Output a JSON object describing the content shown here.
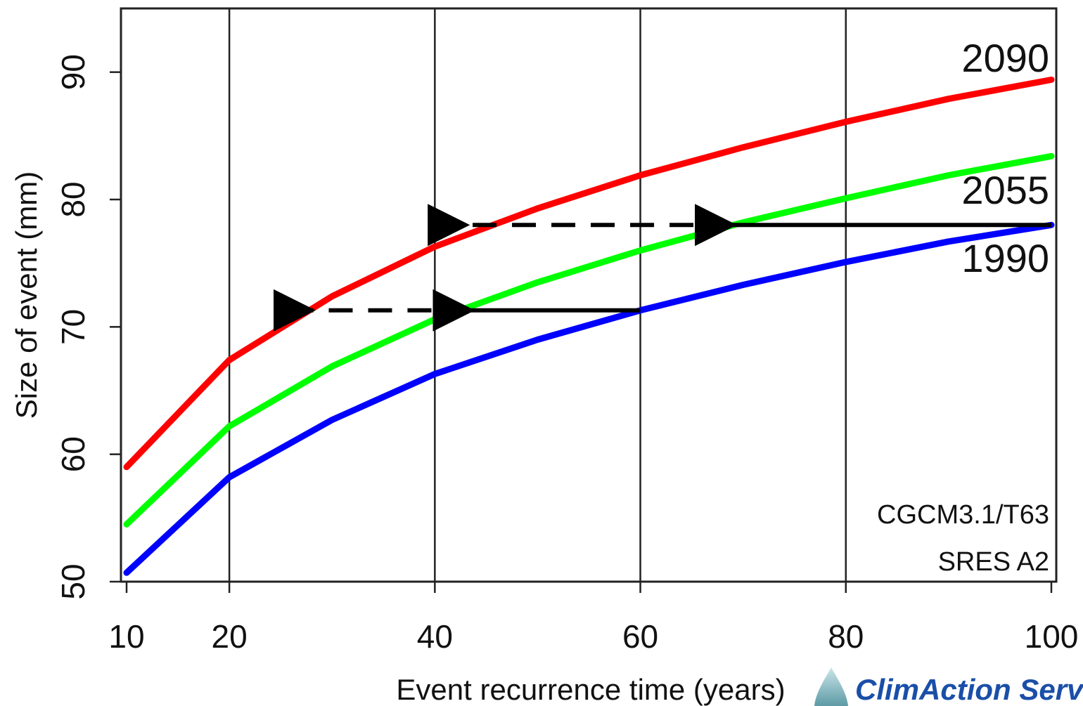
{
  "chart_data": {
    "type": "line",
    "title": "",
    "xlabel": "Event recurrence time (years)",
    "ylabel": "Size of event (mm)",
    "xlim": [
      10,
      100
    ],
    "ylim": [
      50,
      95
    ],
    "x_ticks": [
      10,
      20,
      40,
      60,
      80,
      100
    ],
    "x_tick_labels": [
      "10",
      "20",
      "40",
      "60",
      "80",
      "100"
    ],
    "y_ticks": [
      50,
      60,
      70,
      80,
      90
    ],
    "y_tick_labels": [
      "50",
      "60",
      "70",
      "80",
      "90"
    ],
    "grid": "vertical lines at x ticks",
    "x": [
      10,
      20,
      30,
      40,
      50,
      60,
      70,
      80,
      90,
      100
    ],
    "series": [
      {
        "name": "2090",
        "color": "#ff0000",
        "values": [
          59.0,
          67.4,
          72.4,
          76.3,
          79.3,
          81.9,
          84.1,
          86.1,
          87.9,
          89.4
        ]
      },
      {
        "name": "2055",
        "color": "#00ff00",
        "values": [
          54.5,
          62.2,
          66.9,
          70.6,
          73.5,
          76.0,
          78.2,
          80.1,
          81.9,
          83.4
        ]
      },
      {
        "name": "1990",
        "color": "#0000ff",
        "values": [
          50.7,
          58.2,
          62.7,
          66.3,
          69.0,
          71.3,
          73.3,
          75.1,
          76.7,
          78.0
        ]
      }
    ],
    "annotations": [
      {
        "kind": "arrow",
        "style": "solid",
        "from": [
          100,
          78
        ],
        "to": [
          69,
          78
        ]
      },
      {
        "kind": "arrow",
        "style": "dashed",
        "from": [
          69,
          78
        ],
        "to": [
          43,
          78
        ]
      },
      {
        "kind": "arrow",
        "style": "solid",
        "from": [
          60,
          71.3
        ],
        "to": [
          43.5,
          71.3
        ]
      },
      {
        "kind": "arrow",
        "style": "dashed",
        "from": [
          43.5,
          71.3
        ],
        "to": [
          28,
          71.3
        ]
      }
    ],
    "notes": [
      "CGCM3.1/T63",
      "SRES A2"
    ]
  },
  "brand": {
    "name": "ClimAction Serv",
    "logo": "drop-icon",
    "color": "#1a4fa8"
  }
}
